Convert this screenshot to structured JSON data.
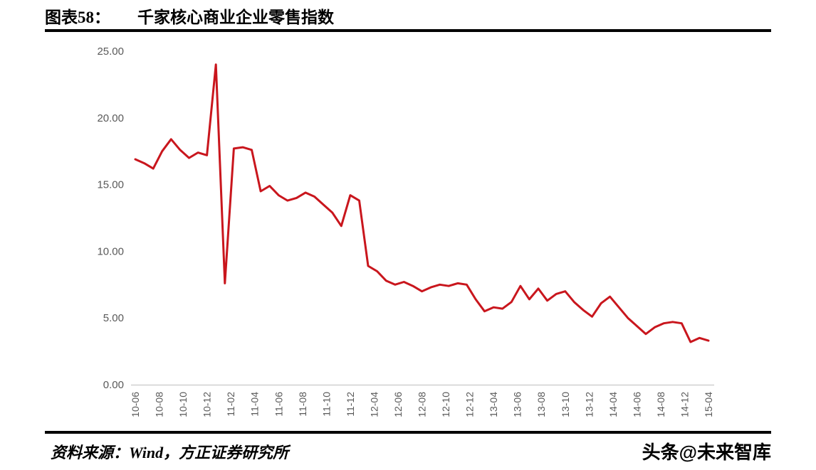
{
  "header": {
    "figure_label": "图表58：",
    "title": "千家核心商业企业零售指数"
  },
  "footer": {
    "source": "资料来源：Wind，方正证券研究所",
    "watermark": "头条@未来智库"
  },
  "chart_data": {
    "type": "line",
    "title": "千家核心商业企业零售指数",
    "grid": false,
    "legend": false,
    "ylim": [
      0,
      25
    ],
    "y_ticks": [
      "0.00",
      "5.00",
      "10.00",
      "15.00",
      "20.00",
      "25.00"
    ],
    "x_ticks": [
      "10-06",
      "10-08",
      "10-10",
      "10-12",
      "11-02",
      "11-04",
      "11-06",
      "11-08",
      "11-10",
      "11-12",
      "12-04",
      "12-06",
      "12-08",
      "12-10",
      "12-12",
      "13-04",
      "13-06",
      "13-08",
      "13-10",
      "13-12",
      "14-04",
      "14-06",
      "14-08",
      "14-12",
      "15-04"
    ],
    "values": [
      16.9,
      16.6,
      16.2,
      17.5,
      18.4,
      17.6,
      17.0,
      17.4,
      17.2,
      24.0,
      7.6,
      17.7,
      17.8,
      17.6,
      14.5,
      14.9,
      14.2,
      13.8,
      14.0,
      14.4,
      14.1,
      13.5,
      12.9,
      11.9,
      14.2,
      13.8,
      8.9,
      8.5,
      7.8,
      7.5,
      7.7,
      7.4,
      7.0,
      7.3,
      7.5,
      7.4,
      7.6,
      7.5,
      6.4,
      5.5,
      5.8,
      5.7,
      6.2,
      7.4,
      6.4,
      7.2,
      6.3,
      6.8,
      7.0,
      6.2,
      5.6,
      5.1,
      6.1,
      6.6,
      5.8,
      5.0,
      4.4,
      3.8,
      4.3,
      4.6,
      4.7,
      4.6,
      3.2,
      3.5,
      3.3
    ],
    "colors": {
      "line": "#c9161d",
      "axis_label": "#595959",
      "axis_line": "#bfbfbf"
    }
  }
}
